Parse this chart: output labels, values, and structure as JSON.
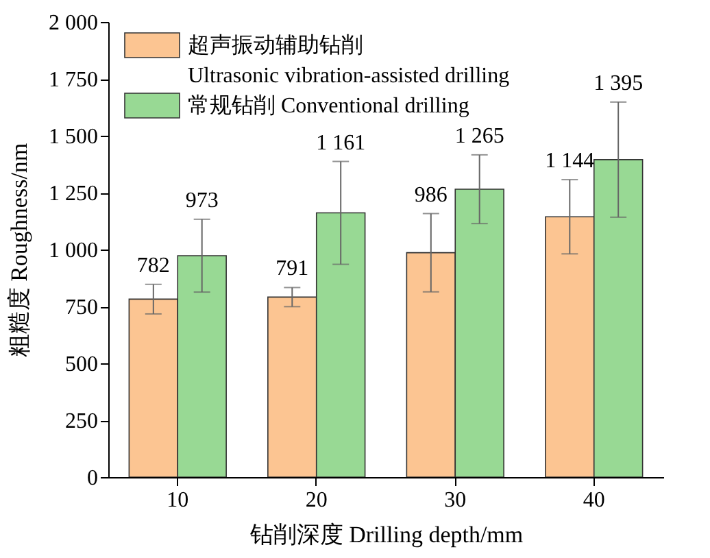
{
  "chart_data": {
    "type": "bar",
    "categories": [
      "10",
      "20",
      "30",
      "40"
    ],
    "xlabel": "钻削深度 Drilling depth/mm",
    "ylabel": "粗糙度 Roughness/nm",
    "ylim": [
      0,
      2000
    ],
    "yticks": [
      0,
      250,
      500,
      750,
      {
        "value": 1000,
        "label": "1 000"
      },
      {
        "value": 1250,
        "label": "1 250"
      },
      {
        "value": 1500,
        "label": "1 500"
      },
      {
        "value": 1750,
        "label": "1 750"
      },
      {
        "value": 2000,
        "label": "2 000"
      }
    ],
    "series": [
      {
        "name": "超声振动辅助钻削 Ultrasonic vibration-assisted drilling",
        "color": "#fcc592",
        "values": [
          782,
          791,
          986,
          1144
        ],
        "errors": [
          65,
          42,
          172,
          163
        ],
        "value_labels": [
          "782",
          "791",
          "986",
          "1 144"
        ]
      },
      {
        "name": "常规钻削 Conventional drilling",
        "color": "#98d994",
        "values": [
          973,
          1161,
          1265,
          1395
        ],
        "errors": [
          160,
          226,
          151,
          253
        ],
        "value_labels": [
          "973",
          "1 161",
          "1 265",
          "1 395"
        ]
      }
    ],
    "legend": "top left",
    "grid": false
  }
}
